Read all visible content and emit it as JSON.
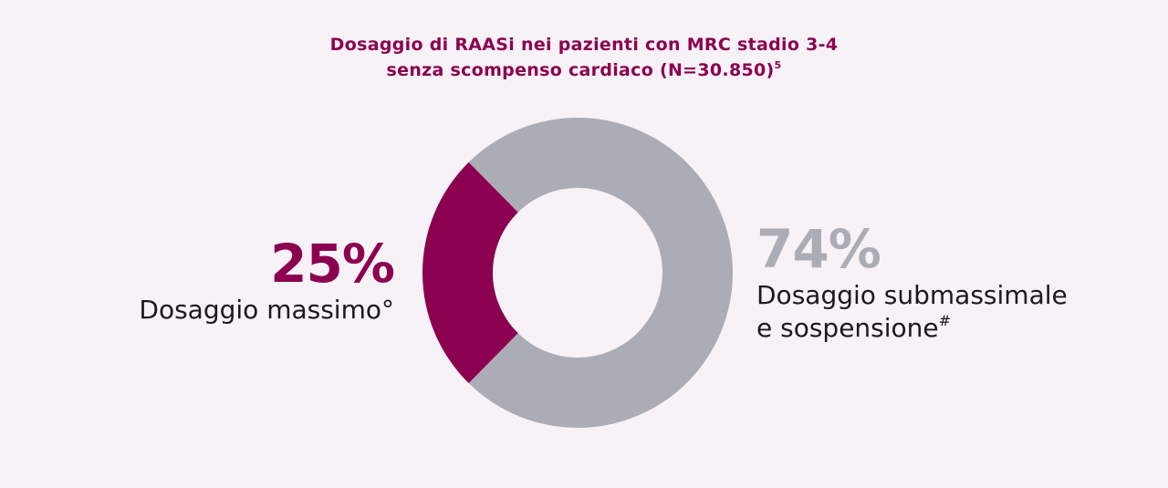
{
  "chart_data": {
    "type": "pie",
    "title": "Dosaggio di RAASi nei pazienti con MRC stadio 3-4",
    "subtitle": "senza scompenso cardiaco (N=30.850)",
    "subtitle_superscript": "5",
    "slices": [
      {
        "value": 25,
        "value_label": "25%",
        "label": "Dosaggio massimo",
        "label_superscript": "°",
        "color": "#8c0050"
      },
      {
        "value": 74,
        "value_label": "74%",
        "label_line1": "Dosaggio submassimale",
        "label_line2": "e sospensione",
        "label_superscript": "#",
        "color": "#acacb6"
      }
    ]
  }
}
